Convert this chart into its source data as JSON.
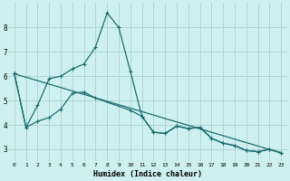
{
  "xlabel": "Humidex (Indice chaleur)",
  "background_color": "#cff0f0",
  "grid_color": "#aed4d4",
  "line_color": "#1a6e6e",
  "xlim": [
    -0.5,
    23.5
  ],
  "ylim": [
    2.5,
    9.0
  ],
  "yticks": [
    3,
    4,
    5,
    6,
    7,
    8
  ],
  "xticks": [
    0,
    1,
    2,
    3,
    4,
    5,
    6,
    7,
    8,
    9,
    10,
    11,
    12,
    13,
    14,
    15,
    16,
    17,
    18,
    19,
    20,
    21,
    22,
    23
  ],
  "series1": [
    [
      0,
      6.1
    ],
    [
      1,
      3.9
    ],
    [
      2,
      4.8
    ],
    [
      3,
      5.9
    ],
    [
      4,
      6.0
    ],
    [
      5,
      6.3
    ],
    [
      6,
      6.5
    ],
    [
      7,
      7.2
    ],
    [
      8,
      8.6
    ],
    [
      9,
      8.0
    ],
    [
      10,
      6.2
    ],
    [
      11,
      4.35
    ],
    [
      12,
      3.7
    ],
    [
      13,
      3.65
    ],
    [
      14,
      3.95
    ],
    [
      15,
      3.85
    ],
    [
      16,
      3.9
    ],
    [
      17,
      3.45
    ],
    [
      18,
      3.25
    ],
    [
      19,
      3.15
    ],
    [
      20,
      2.95
    ],
    [
      21,
      2.9
    ],
    [
      22,
      3.0
    ],
    [
      23,
      2.85
    ]
  ],
  "series2": [
    [
      0,
      6.1
    ],
    [
      1,
      3.9
    ],
    [
      2,
      4.15
    ],
    [
      3,
      4.3
    ],
    [
      4,
      4.65
    ],
    [
      5,
      5.3
    ],
    [
      6,
      5.35
    ],
    [
      7,
      5.1
    ],
    [
      10,
      4.6
    ],
    [
      11,
      4.35
    ],
    [
      12,
      3.7
    ],
    [
      13,
      3.65
    ],
    [
      14,
      3.95
    ],
    [
      15,
      3.85
    ],
    [
      16,
      3.9
    ],
    [
      17,
      3.45
    ],
    [
      18,
      3.25
    ],
    [
      19,
      3.15
    ],
    [
      20,
      2.95
    ],
    [
      21,
      2.9
    ],
    [
      22,
      3.0
    ],
    [
      23,
      2.85
    ]
  ],
  "series3": [
    [
      0,
      6.1
    ],
    [
      23,
      2.85
    ]
  ]
}
